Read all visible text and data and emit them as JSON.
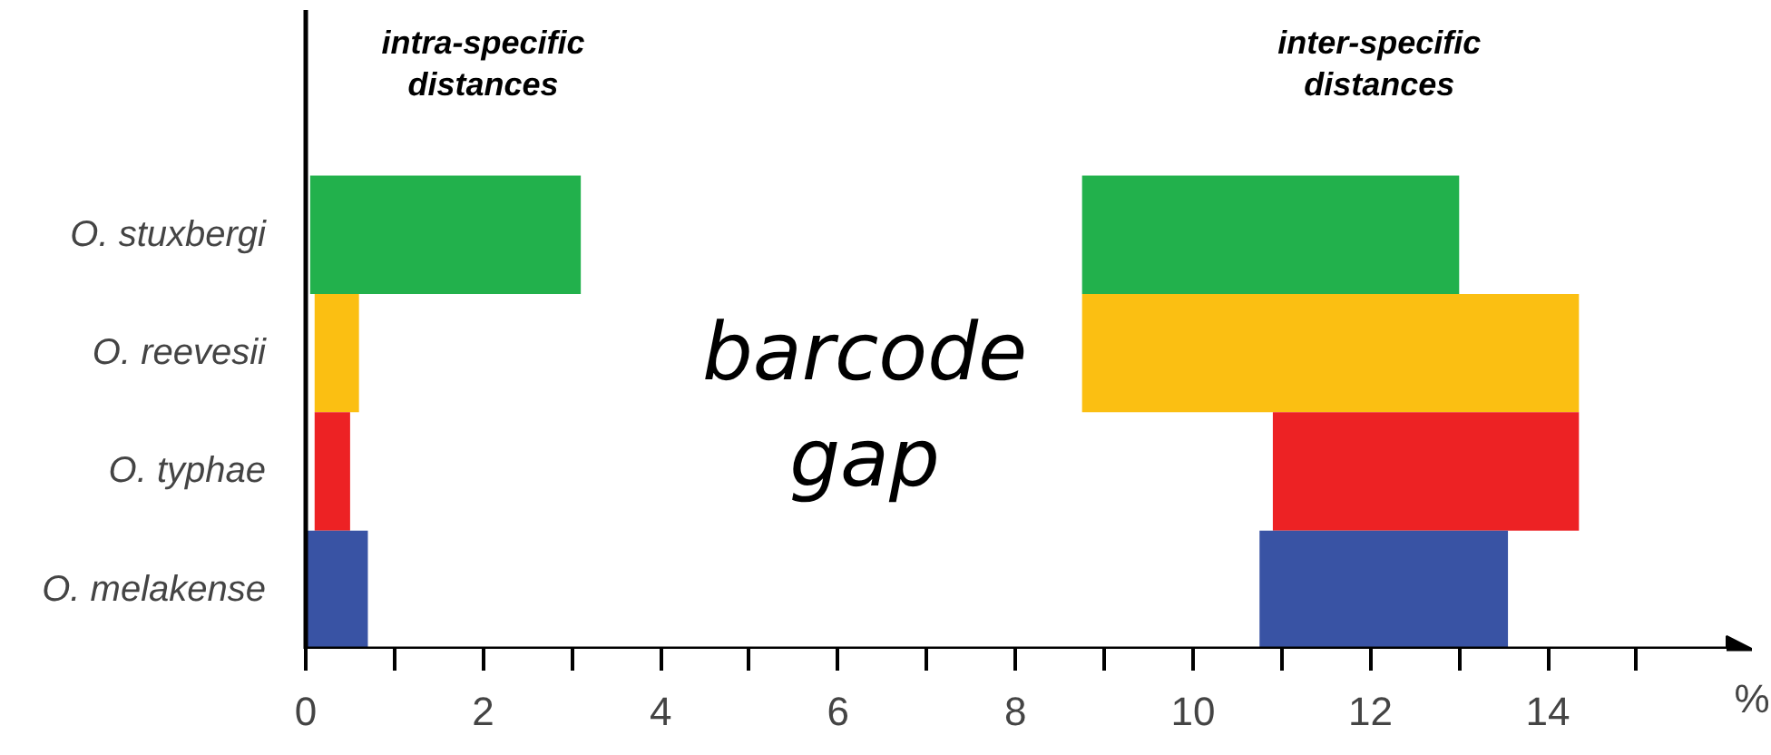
{
  "chart_data": {
    "type": "bar",
    "orientation": "horizontal",
    "categories": [
      "O. stuxbergi",
      "O. reevesii",
      "O. typhae",
      "O. melakense"
    ],
    "series": [
      {
        "colors": [
          "#22b14c",
          "#fbbf12",
          "#ed2224",
          "#3953a4"
        ],
        "base": [
          0.05,
          0.1,
          0.1,
          0.0
        ],
        "values": [
          3.05,
          0.5,
          0.4,
          0.7
        ]
      },
      {
        "colors": [
          "#22b14c",
          "#fbbf12",
          "#ed2224",
          "#3953a4"
        ],
        "base": [
          8.75,
          8.75,
          10.9,
          10.75
        ],
        "values": [
          4.25,
          5.6,
          3.45,
          2.8
        ]
      }
    ],
    "xlim": [
      0,
      16.3
    ],
    "xticks": [
      0,
      {
        "value": 1,
        "label": null
      },
      2,
      {
        "value": 3,
        "label": null
      },
      4,
      {
        "value": 5,
        "label": null
      },
      6,
      {
        "value": 7,
        "label": null
      },
      8,
      {
        "value": 9,
        "label": null
      },
      10,
      {
        "value": 11,
        "label": null
      },
      12,
      {
        "value": 13,
        "label": null
      },
      14,
      {
        "value": 15,
        "label": null
      }
    ],
    "xlabel": "%",
    "annotations": [
      "intra-specific\ndistances",
      "inter-specific\ndistances",
      "barcode\ngap"
    ],
    "grid": false
  }
}
